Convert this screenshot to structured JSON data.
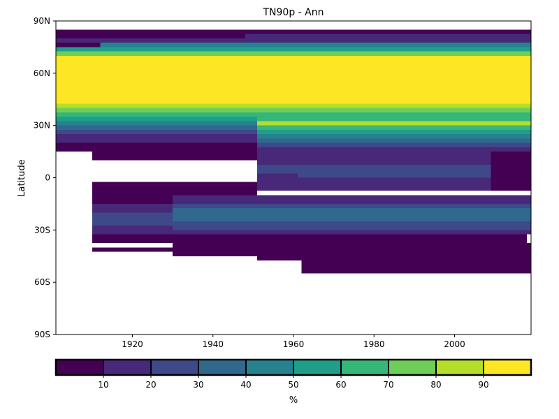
{
  "chart_data": {
    "type": "heatmap",
    "title": "TN90p - Ann",
    "ylabel": "Latitude",
    "xlim": [
      1901,
      2019
    ],
    "ylim": [
      -90,
      90
    ],
    "x_ticks": [
      1920,
      1940,
      1960,
      1980,
      2000
    ],
    "y_ticks": [
      {
        "value": 90,
        "label": "90N"
      },
      {
        "value": 60,
        "label": "60N"
      },
      {
        "value": 30,
        "label": "30N"
      },
      {
        "value": 0,
        "label": "0"
      },
      {
        "value": -30,
        "label": "30S"
      },
      {
        "value": -60,
        "label": "60S"
      },
      {
        "value": -90,
        "label": "90S"
      }
    ],
    "grid": false,
    "colorbar": {
      "label": "%",
      "min": 0,
      "max": 100,
      "ticks": [
        10,
        20,
        30,
        40,
        50,
        60,
        70,
        80,
        90
      ],
      "colors": [
        "#440154",
        "#482878",
        "#3e4989",
        "#31688e",
        "#26828e",
        "#1f9e89",
        "#35b779",
        "#6ece58",
        "#b5de2b",
        "#fde725"
      ]
    },
    "regions": [
      {
        "x": [
          1901,
          2019
        ],
        "y": [
          42.5,
          70
        ],
        "value": 95
      },
      {
        "x": [
          1901,
          2019
        ],
        "y": [
          72.5,
          75
        ],
        "value": 55
      },
      {
        "x": [
          1901,
          2019
        ],
        "y": [
          70,
          72.5
        ],
        "value": 75
      },
      {
        "x": [
          1901,
          2019
        ],
        "y": [
          75,
          77.5
        ],
        "value": 45
      },
      {
        "x": [
          1901,
          2019
        ],
        "y": [
          77.5,
          82.5
        ],
        "value": 15
      },
      {
        "x": [
          1901,
          1948
        ],
        "y": [
          80,
          82.5
        ],
        "value": 5
      },
      {
        "x": [
          1901,
          1912
        ],
        "y": [
          75,
          77.5
        ],
        "value": 5
      },
      {
        "x": [
          1948,
          2019
        ],
        "y": [
          82.5,
          85
        ],
        "value": 5
      },
      {
        "x": [
          1901,
          1948
        ],
        "y": [
          82.5,
          85
        ],
        "value": 5
      },
      {
        "x": [
          1901,
          2019
        ],
        "y": [
          40,
          42.5
        ],
        "value": 85
      },
      {
        "x": [
          1901,
          2019
        ],
        "y": [
          37.5,
          40
        ],
        "value": 70
      },
      {
        "x": [
          1901,
          2019
        ],
        "y": [
          35,
          37.5
        ],
        "value": 65
      },
      {
        "x": [
          1901,
          1951
        ],
        "y": [
          32.5,
          35
        ],
        "value": 55
      },
      {
        "x": [
          1901,
          1951
        ],
        "y": [
          30,
          32.5
        ],
        "value": 45
      },
      {
        "x": [
          1901,
          1951
        ],
        "y": [
          27.5,
          30
        ],
        "value": 35
      },
      {
        "x": [
          1901,
          1951
        ],
        "y": [
          25,
          27.5
        ],
        "value": 25
      },
      {
        "x": [
          1901,
          1951
        ],
        "y": [
          20,
          25
        ],
        "value": 15
      },
      {
        "x": [
          1901,
          1951
        ],
        "y": [
          15,
          20
        ],
        "value": 5
      },
      {
        "x": [
          1951,
          2019
        ],
        "y": [
          30,
          32.5
        ],
        "value": 85
      },
      {
        "x": [
          1951,
          2019
        ],
        "y": [
          32.5,
          35
        ],
        "value": 65
      },
      {
        "x": [
          1951,
          2019
        ],
        "y": [
          27.5,
          30
        ],
        "value": 65
      },
      {
        "x": [
          1951,
          2019
        ],
        "y": [
          25,
          27.5
        ],
        "value": 55
      },
      {
        "x": [
          1951,
          2019
        ],
        "y": [
          22.5,
          25
        ],
        "value": 45
      },
      {
        "x": [
          1951,
          2019
        ],
        "y": [
          20,
          22.5
        ],
        "value": 35
      },
      {
        "x": [
          1951,
          2019
        ],
        "y": [
          17.5,
          20
        ],
        "value": 25
      },
      {
        "x": [
          1951,
          2019
        ],
        "y": [
          15,
          17.5
        ],
        "value": 15
      },
      {
        "x": [
          1910,
          1951
        ],
        "y": [
          10,
          15
        ],
        "value": 5
      },
      {
        "x": [
          1951,
          2019
        ],
        "y": [
          7.5,
          15
        ],
        "value": 15
      },
      {
        "x": [
          1951,
          2019
        ],
        "y": [
          2.5,
          7.5
        ],
        "value": 25
      },
      {
        "x": [
          1961,
          2009
        ],
        "y": [
          0,
          2.5
        ],
        "value": 25
      },
      {
        "x": [
          1951,
          1961
        ],
        "y": [
          -7.5,
          2.5
        ],
        "value": 15
      },
      {
        "x": [
          1961,
          2009
        ],
        "y": [
          -7.5,
          0
        ],
        "value": 15
      },
      {
        "x": [
          1910,
          1951
        ],
        "y": [
          -10,
          -2.5
        ],
        "value": 5
      },
      {
        "x": [
          2009,
          2019
        ],
        "y": [
          -7.5,
          7.5
        ],
        "value": 5
      },
      {
        "x": [
          2009,
          2019
        ],
        "y": [
          7.5,
          15
        ],
        "value": 5
      },
      {
        "x": [
          1910,
          1930
        ],
        "y": [
          -15,
          -10
        ],
        "value": 5
      },
      {
        "x": [
          1910,
          1930
        ],
        "y": [
          -20,
          -15
        ],
        "value": 15
      },
      {
        "x": [
          1910,
          1930
        ],
        "y": [
          -27.5,
          -20
        ],
        "value": 25
      },
      {
        "x": [
          1910,
          1930
        ],
        "y": [
          -32.5,
          -27.5
        ],
        "value": 15
      },
      {
        "x": [
          1910,
          1930
        ],
        "y": [
          -37.5,
          -32.5
        ],
        "value": 5
      },
      {
        "x": [
          1910,
          1930
        ],
        "y": [
          -42.5,
          -40
        ],
        "value": 5
      },
      {
        "x": [
          1930,
          2019
        ],
        "y": [
          -15,
          -10
        ],
        "value": 15
      },
      {
        "x": [
          1930,
          2019
        ],
        "y": [
          -17.5,
          -15
        ],
        "value": 25
      },
      {
        "x": [
          1930,
          2019
        ],
        "y": [
          -25,
          -17.5
        ],
        "value": 35
      },
      {
        "x": [
          1930,
          2019
        ],
        "y": [
          -30,
          -25
        ],
        "value": 25
      },
      {
        "x": [
          1930,
          2019
        ],
        "y": [
          -32.5,
          -30
        ],
        "value": 15
      },
      {
        "x": [
          1930,
          2018
        ],
        "y": [
          -37.5,
          -32.5
        ],
        "value": 5
      },
      {
        "x": [
          1930,
          1951
        ],
        "y": [
          -45,
          -37.5
        ],
        "value": 5
      },
      {
        "x": [
          1951,
          2019
        ],
        "y": [
          -47.5,
          -37.5
        ],
        "value": 5
      },
      {
        "x": [
          1962,
          2019
        ],
        "y": [
          -55,
          -47.5
        ],
        "value": 5
      }
    ]
  }
}
